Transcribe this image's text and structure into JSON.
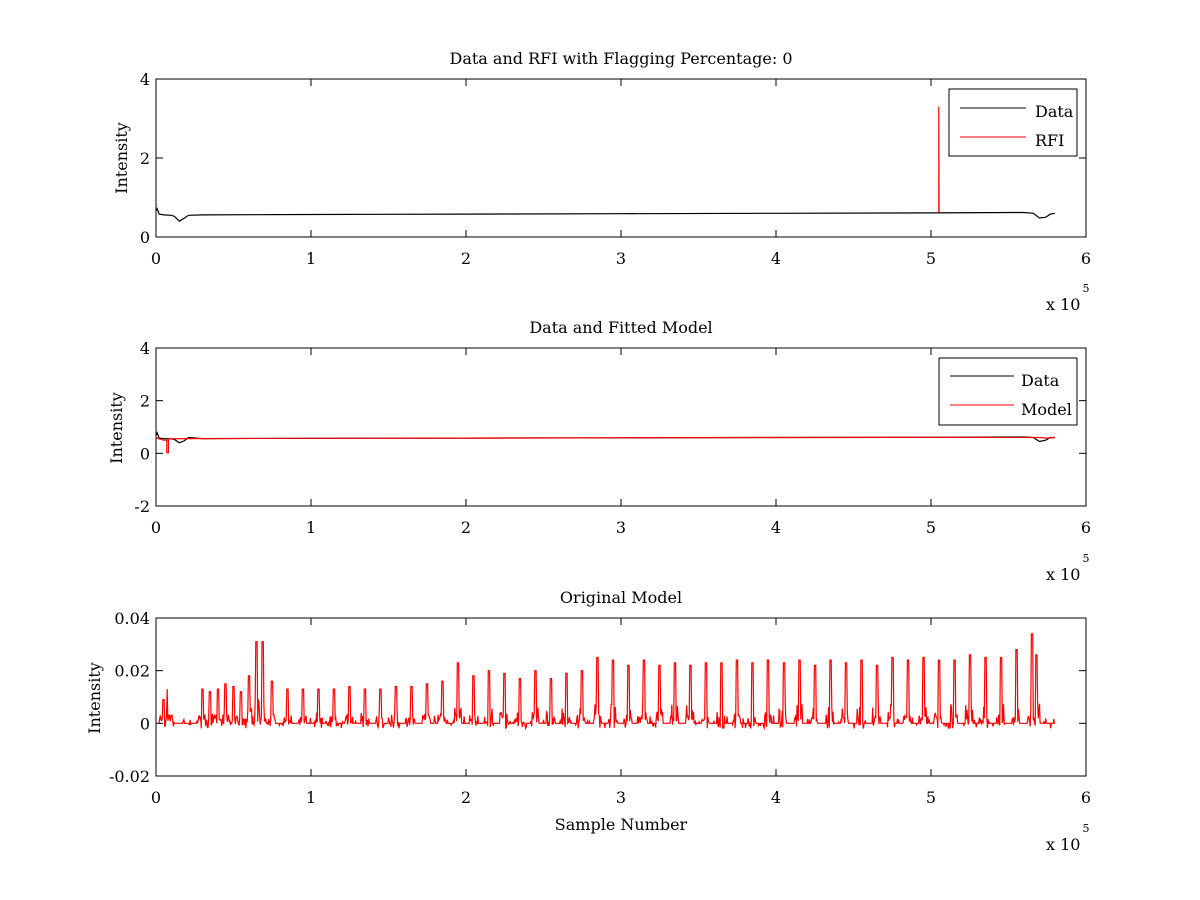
{
  "figure_background": "#ffffff",
  "chart_data": [
    {
      "type": "line",
      "title": "Data and RFI with Flagging Percentage: 0",
      "xlabel": "",
      "ylabel": "Intensity",
      "xlim": [
        0,
        6
      ],
      "ylim": [
        0,
        4
      ],
      "xticks": [
        "0",
        "1",
        "2",
        "3",
        "4",
        "5",
        "6"
      ],
      "yticks": [
        "0",
        "2",
        "4"
      ],
      "x_exponent": {
        "base": "x 10",
        "power": "5"
      },
      "legend": {
        "position": "top-right",
        "entries": [
          "Data",
          "RFI"
        ]
      },
      "series": [
        {
          "name": "Data",
          "color": "#000000",
          "points": [
            [
              0,
              0.66
            ],
            [
              0.008,
              0.72
            ],
            [
              0.02,
              0.58
            ],
            [
              0.05,
              0.56
            ],
            [
              0.1,
              0.55
            ],
            [
              0.12,
              0.52
            ],
            [
              0.15,
              0.4
            ],
            [
              0.18,
              0.47
            ],
            [
              0.21,
              0.55
            ],
            [
              0.3,
              0.56
            ],
            [
              1.0,
              0.57
            ],
            [
              2.0,
              0.58
            ],
            [
              3.0,
              0.59
            ],
            [
              4.0,
              0.6
            ],
            [
              5.0,
              0.61
            ],
            [
              5.6,
              0.62
            ],
            [
              5.66,
              0.6
            ],
            [
              5.7,
              0.48
            ],
            [
              5.74,
              0.5
            ],
            [
              5.77,
              0.58
            ],
            [
              5.8,
              0.6
            ]
          ]
        },
        {
          "name": "RFI",
          "color": "#ff0000",
          "points": [
            [
              5.05,
              0.61
            ],
            [
              5.05,
              3.3
            ],
            [
              5.052,
              0.61
            ]
          ]
        }
      ]
    },
    {
      "type": "line",
      "title": "Data and Fitted Model",
      "xlabel": "",
      "ylabel": "Intensity",
      "xlim": [
        0,
        6
      ],
      "ylim": [
        -2,
        4
      ],
      "xticks": [
        "0",
        "1",
        "2",
        "3",
        "4",
        "5",
        "6"
      ],
      "yticks": [
        "-2",
        "0",
        "2",
        "4"
      ],
      "x_exponent": {
        "base": "x 10",
        "power": "5"
      },
      "legend": {
        "position": "top-right",
        "entries": [
          "Data",
          "Model"
        ]
      },
      "series": [
        {
          "name": "Data",
          "color": "#000000",
          "points": [
            [
              0,
              0.68
            ],
            [
              0.008,
              0.78
            ],
            [
              0.02,
              0.58
            ],
            [
              0.05,
              0.56
            ],
            [
              0.1,
              0.55
            ],
            [
              0.12,
              0.52
            ],
            [
              0.15,
              0.4
            ],
            [
              0.18,
              0.47
            ],
            [
              0.21,
              0.6
            ],
            [
              0.3,
              0.56
            ],
            [
              1.0,
              0.57
            ],
            [
              2.0,
              0.58
            ],
            [
              3.0,
              0.59
            ],
            [
              4.0,
              0.6
            ],
            [
              5.0,
              0.61
            ],
            [
              5.6,
              0.62
            ],
            [
              5.66,
              0.6
            ],
            [
              5.7,
              0.45
            ],
            [
              5.74,
              0.5
            ],
            [
              5.77,
              0.6
            ],
            [
              5.8,
              0.6
            ]
          ]
        },
        {
          "name": "Model",
          "color": "#ff0000",
          "points": [
            [
              0,
              0.6
            ],
            [
              0.02,
              0.55
            ],
            [
              0.05,
              0.5
            ],
            [
              0.07,
              0.5
            ],
            [
              0.07,
              0.02
            ],
            [
              0.08,
              0.02
            ],
            [
              0.08,
              0.55
            ],
            [
              0.2,
              0.56
            ],
            [
              1.0,
              0.57
            ],
            [
              2.0,
              0.58
            ],
            [
              3.0,
              0.59
            ],
            [
              4.0,
              0.6
            ],
            [
              5.0,
              0.61
            ],
            [
              5.7,
              0.6
            ],
            [
              5.75,
              0.58
            ],
            [
              5.8,
              0.6
            ]
          ]
        }
      ]
    },
    {
      "type": "line",
      "title": "Original Model",
      "xlabel": "Sample Number",
      "ylabel": "Intensity",
      "xlim": [
        0,
        6
      ],
      "ylim": [
        -0.02,
        0.04
      ],
      "xticks": [
        "0",
        "1",
        "2",
        "3",
        "4",
        "5",
        "6"
      ],
      "yticks": [
        "-0.02",
        "0",
        "0.02",
        "0.04"
      ],
      "x_exponent": {
        "base": "x 10",
        "power": "5"
      },
      "series": [
        {
          "color": "#ff0000",
          "x_start": 0.02,
          "x_end": 5.8,
          "baseline": 0.0,
          "noise_band": [
            -0.002,
            0.003
          ],
          "spikes": [
            [
              0.05,
              0.009
            ],
            [
              0.07,
              0.013
            ],
            [
              0.1,
              0.003
            ],
            [
              0.3,
              0.013
            ],
            [
              0.35,
              0.012
            ],
            [
              0.4,
              0.013
            ],
            [
              0.45,
              0.015
            ],
            [
              0.5,
              0.014
            ],
            [
              0.55,
              0.012
            ],
            [
              0.6,
              0.018
            ],
            [
              0.65,
              0.031
            ],
            [
              0.69,
              0.031
            ],
            [
              0.75,
              0.016
            ],
            [
              0.85,
              0.013
            ],
            [
              0.95,
              0.013
            ],
            [
              1.05,
              0.013
            ],
            [
              1.15,
              0.013
            ],
            [
              1.25,
              0.014
            ],
            [
              1.35,
              0.013
            ],
            [
              1.45,
              0.013
            ],
            [
              1.55,
              0.014
            ],
            [
              1.65,
              0.014
            ],
            [
              1.75,
              0.015
            ],
            [
              1.85,
              0.016
            ],
            [
              1.95,
              0.023
            ],
            [
              2.05,
              0.018
            ],
            [
              2.15,
              0.02
            ],
            [
              2.25,
              0.019
            ],
            [
              2.35,
              0.017
            ],
            [
              2.45,
              0.02
            ],
            [
              2.55,
              0.017
            ],
            [
              2.65,
              0.019
            ],
            [
              2.75,
              0.02
            ],
            [
              2.85,
              0.025
            ],
            [
              2.95,
              0.024
            ],
            [
              3.05,
              0.022
            ],
            [
              3.15,
              0.024
            ],
            [
              3.25,
              0.022
            ],
            [
              3.35,
              0.023
            ],
            [
              3.45,
              0.022
            ],
            [
              3.55,
              0.023
            ],
            [
              3.65,
              0.023
            ],
            [
              3.75,
              0.024
            ],
            [
              3.85,
              0.023
            ],
            [
              3.95,
              0.024
            ],
            [
              4.05,
              0.023
            ],
            [
              4.15,
              0.024
            ],
            [
              4.25,
              0.022
            ],
            [
              4.35,
              0.024
            ],
            [
              4.45,
              0.023
            ],
            [
              4.55,
              0.024
            ],
            [
              4.65,
              0.022
            ],
            [
              4.75,
              0.025
            ],
            [
              4.85,
              0.024
            ],
            [
              4.95,
              0.025
            ],
            [
              5.05,
              0.024
            ],
            [
              5.15,
              0.024
            ],
            [
              5.25,
              0.026
            ],
            [
              5.35,
              0.025
            ],
            [
              5.45,
              0.025
            ],
            [
              5.55,
              0.028
            ],
            [
              5.65,
              0.034
            ],
            [
              5.68,
              0.026
            ]
          ]
        }
      ]
    }
  ]
}
